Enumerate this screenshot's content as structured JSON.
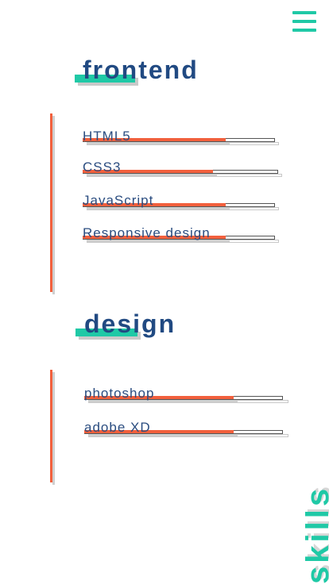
{
  "sections": [
    {
      "title": "frontend",
      "skills": [
        {
          "name": "HTML5",
          "level": 0.74
        },
        {
          "name": "CSS3",
          "level": 0.67
        },
        {
          "name": "JavaScript",
          "level": 0.74
        },
        {
          "name": "Responsive design",
          "level": 0.74
        }
      ]
    },
    {
      "title": "design",
      "skills": [
        {
          "name": "photoshop",
          "level": 0.75
        },
        {
          "name": "adobe XD",
          "level": 0.75
        }
      ]
    }
  ],
  "vertical_label": "skills",
  "colors": {
    "accent_teal": "#1fc9a6",
    "accent_orange": "#f2603d",
    "heading_blue": "#214a82",
    "text_blue": "#2b4d80"
  },
  "icons": {
    "menu": "hamburger-menu-icon"
  }
}
